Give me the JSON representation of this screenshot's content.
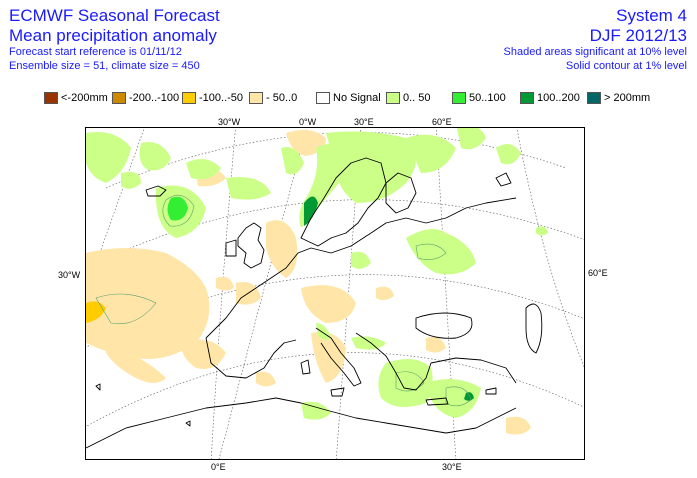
{
  "header": {
    "left": [
      "ECMWF Seasonal Forecast",
      "Mean precipitation anomaly",
      "Forecast start reference is 01/11/12",
      "Ensemble size = 51, climate size = 450"
    ],
    "right": [
      "System 4",
      "DJF 2012/13",
      "Shaded areas significant at 10% level",
      "Solid contour at 1% level"
    ]
  },
  "legend": [
    {
      "label": "<-200mm",
      "color": "#993300"
    },
    {
      "label": "-200..-100",
      "color": "#cc8800"
    },
    {
      "label": "-100..-50",
      "color": "#ffcc00"
    },
    {
      "label": "- 50..0",
      "color": "#ffe6a8"
    },
    {
      "label": "No Signal",
      "color": "#ffffff"
    },
    {
      "label": "0.. 50",
      "color": "#ccff88"
    },
    {
      "label": "50..100",
      "color": "#33ee33"
    },
    {
      "label": "100..200",
      "color": "#009933"
    },
    {
      "label": "> 200mm",
      "color": "#006666"
    }
  ],
  "axes": {
    "top": [
      "30°W",
      "0°W",
      "30°E",
      "60°E"
    ],
    "left": [
      "30°W"
    ],
    "right": [
      "60°E"
    ],
    "bottom": [
      "0°E",
      "30°E"
    ]
  }
}
